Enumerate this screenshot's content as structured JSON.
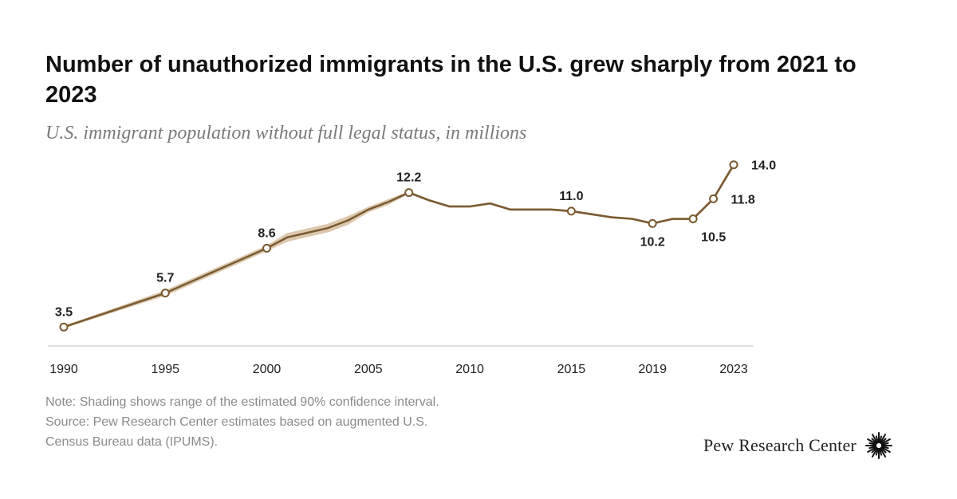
{
  "title": "Number of unauthorized immigrants in the U.S. grew sharply from 2021 to 2023",
  "subtitle": "U.S. immigrant population without full legal status, in millions",
  "note": "Note: Shading shows range of the estimated 90% confidence interval.",
  "source_lines": [
    "Source: Pew Research Center estimates based on augmented U.S.",
    "Census Bureau data (IPUMS)."
  ],
  "brand": "Pew Research Center",
  "colors": {
    "line": "#7a5a32",
    "ci_band": "#dcc8ad",
    "marker_fill": "#ffffff",
    "axis": "#d9d9d9"
  },
  "chart_data": {
    "type": "line",
    "title": "Number of unauthorized immigrants in the U.S. grew sharply from 2021 to 2023",
    "subtitle": "U.S. immigrant population without full legal status, in millions",
    "xlabel": "",
    "ylabel": "",
    "x_ticks": [
      "1990",
      "1995",
      "2000",
      "2005",
      "2010",
      "2015",
      "2019",
      "2023"
    ],
    "x_tick_values": [
      1990,
      1995,
      2000,
      2005,
      2010,
      2015,
      2019,
      2023
    ],
    "xlim": [
      1990,
      2023
    ],
    "ylim": [
      3,
      14.5
    ],
    "grid": false,
    "legend": "none",
    "series": [
      {
        "values_x": [
          1990,
          1995,
          2000,
          2001,
          2002,
          2003,
          2004,
          2005,
          2006,
          2007,
          2008,
          2009,
          2010,
          2011,
          2012,
          2013,
          2014,
          2015,
          2016,
          2017,
          2018,
          2019,
          2020,
          2021,
          2022,
          2023
        ],
        "values_y": [
          3.5,
          5.7,
          8.6,
          9.3,
          9.6,
          9.9,
          10.4,
          11.1,
          11.6,
          12.2,
          11.7,
          11.3,
          11.3,
          11.5,
          11.1,
          11.1,
          11.1,
          11.0,
          10.8,
          10.6,
          10.5,
          10.2,
          10.5,
          10.5,
          11.8,
          14.0
        ],
        "ci_low": [
          3.5,
          5.6,
          8.5,
          9.1,
          9.4,
          9.7,
          10.2,
          11.0,
          11.5,
          12.2,
          11.7,
          11.3,
          11.3,
          11.5,
          11.1,
          11.1,
          11.1,
          11.0,
          10.8,
          10.6,
          10.5,
          10.2,
          10.5,
          10.5,
          11.8,
          14.0
        ],
        "ci_high": [
          3.5,
          5.8,
          8.7,
          9.5,
          9.8,
          10.1,
          10.6,
          11.2,
          11.7,
          12.2,
          11.7,
          11.3,
          11.3,
          11.5,
          11.1,
          11.1,
          11.1,
          11.0,
          10.8,
          10.6,
          10.5,
          10.2,
          10.5,
          10.5,
          11.8,
          14.0
        ]
      }
    ],
    "labeled_points": [
      {
        "x": 1990,
        "y": 3.5,
        "label": "3.5",
        "pos": "above"
      },
      {
        "x": 1995,
        "y": 5.7,
        "label": "5.7",
        "pos": "above"
      },
      {
        "x": 2000,
        "y": 8.6,
        "label": "8.6",
        "pos": "above"
      },
      {
        "x": 2007,
        "y": 12.2,
        "label": "12.2",
        "pos": "above"
      },
      {
        "x": 2015,
        "y": 11.0,
        "label": "11.0",
        "pos": "above"
      },
      {
        "x": 2019,
        "y": 10.2,
        "label": "10.2",
        "pos": "below"
      },
      {
        "x": 2021,
        "y": 10.5,
        "label": "10.5",
        "pos": "below-right"
      },
      {
        "x": 2022,
        "y": 11.8,
        "label": "11.8",
        "pos": "right"
      },
      {
        "x": 2023,
        "y": 14.0,
        "label": "14.0",
        "pos": "right"
      }
    ]
  }
}
